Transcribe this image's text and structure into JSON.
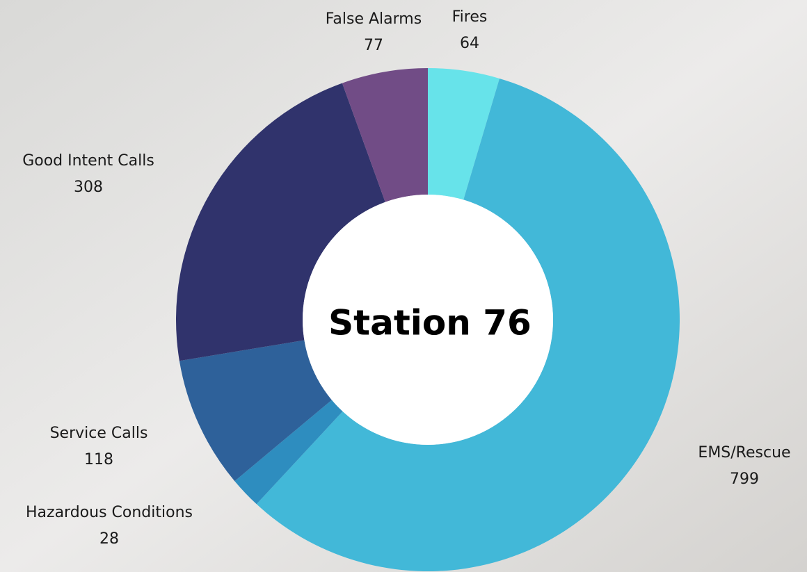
{
  "chart_data": {
    "type": "donut",
    "center_label": "Station 76",
    "categories": [
      "Fires",
      "EMS/Rescue",
      "Hazardous Conditions",
      "Service Calls",
      "Good Intent Calls",
      "False Alarms"
    ],
    "values": [
      64,
      799,
      28,
      118,
      308,
      77
    ],
    "colors": [
      "#67e3ea",
      "#42b8d8",
      "#2e8dbf",
      "#2e619a",
      "#30336c",
      "#714c86"
    ]
  }
}
